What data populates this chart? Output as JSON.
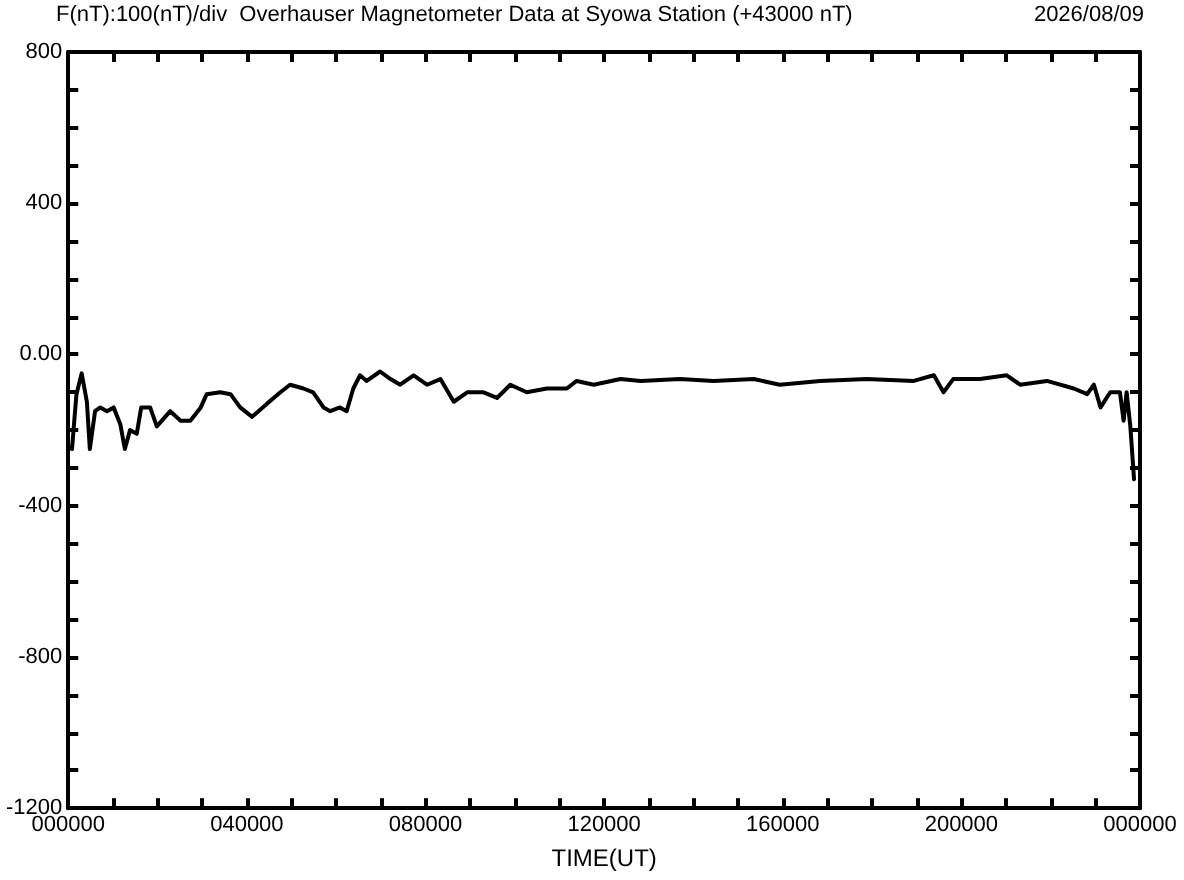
{
  "chart_data": {
    "type": "line",
    "title": "F(nT):100(nT)/div  Overhauser Magnetometer Data at Syowa Station (+43000 nT)",
    "subtitle": "2026/08/09",
    "xlabel": "TIME(UT)",
    "x": [
      "2026-08-09T00:00",
      "2026-08-09T00:05",
      "2026-08-09T00:11",
      "2026-08-09T00:18",
      "2026-08-09T00:25",
      "2026-08-09T00:29",
      "2026-08-09T00:36",
      "2026-08-09T00:43",
      "2026-08-09T00:52",
      "2026-08-09T01:01",
      "2026-08-09T01:10",
      "2026-08-09T01:16",
      "2026-08-09T01:23",
      "2026-08-09T01:32",
      "2026-08-09T01:38",
      "2026-08-09T01:50",
      "2026-08-09T01:59",
      "2026-08-09T02:17",
      "2026-08-09T02:31",
      "2026-08-09T02:44",
      "2026-08-09T02:58",
      "2026-08-09T03:06",
      "2026-08-09T03:24",
      "2026-08-09T03:38",
      "2026-08-09T03:51",
      "2026-08-09T04:07",
      "2026-08-09T04:27",
      "2026-08-09T04:45",
      "2026-08-09T04:58",
      "2026-08-09T05:16",
      "2026-08-09T05:29",
      "2026-08-09T05:43",
      "2026-08-09T05:52",
      "2026-08-09T06:05",
      "2026-08-09T06:14",
      "2026-08-09T06:23",
      "2026-08-09T06:32",
      "2026-08-09T06:41",
      "2026-08-09T06:59",
      "2026-08-09T07:13",
      "2026-08-09T07:26",
      "2026-08-09T07:44",
      "2026-08-09T08:02",
      "2026-08-09T08:20",
      "2026-08-09T08:38",
      "2026-08-09T08:56",
      "2026-08-09T09:18",
      "2026-08-09T09:36",
      "2026-08-09T09:54",
      "2026-08-09T10:16",
      "2026-08-09T10:43",
      "2026-08-09T11:10",
      "2026-08-09T11:23",
      "2026-08-09T11:46",
      "2026-08-09T12:22",
      "2026-08-09T12:49",
      "2026-08-09T13:42",
      "2026-08-09T14:27",
      "2026-08-09T15:21",
      "2026-08-09T15:56",
      "2026-08-09T16:50",
      "2026-08-09T17:53",
      "2026-08-09T18:56",
      "2026-08-09T19:23",
      "2026-08-09T19:36",
      "2026-08-09T19:49",
      "2026-08-09T20:25",
      "2026-08-09T21:01",
      "2026-08-09T21:19",
      "2026-08-09T21:55",
      "2026-08-09T22:31",
      "2026-08-09T22:49",
      "2026-08-09T22:58",
      "2026-08-09T23:07",
      "2026-08-09T23:20",
      "2026-08-09T23:33",
      "2026-08-09T23:38",
      "2026-08-09T23:42",
      "2026-08-09T23:47",
      "2026-08-09T23:52"
    ],
    "series": [
      {
        "color": "#000000",
        "values": [
          -245,
          -250,
          -105,
          -50,
          -125,
          -250,
          -150,
          -140,
          -150,
          -140,
          -185,
          -250,
          -200,
          -210,
          -140,
          -140,
          -190,
          -150,
          -175,
          -175,
          -140,
          -105,
          -100,
          -105,
          -140,
          -165,
          -130,
          -100,
          -80,
          -90,
          -100,
          -140,
          -150,
          -140,
          -150,
          -90,
          -55,
          -70,
          -45,
          -65,
          -80,
          -55,
          -80,
          -65,
          -125,
          -100,
          -100,
          -115,
          -80,
          -100,
          -90,
          -90,
          -70,
          -80,
          -65,
          -70,
          -65,
          -70,
          -65,
          -80,
          -70,
          -65,
          -70,
          -55,
          -100,
          -65,
          -65,
          -55,
          -80,
          -70,
          -90,
          -105,
          -80,
          -140,
          -100,
          -100,
          -175,
          -100,
          -190,
          -330
        ]
      }
    ],
    "xlim": [
      "2026-08-09T00:00",
      "2026-08-10T00:00"
    ],
    "xticks": [
      {
        "value": "2026-08-09T00:00",
        "label": "000000"
      },
      {
        "value": "2026-08-09T01:00",
        "label": null
      },
      {
        "value": "2026-08-09T02:00",
        "label": null
      },
      {
        "value": "2026-08-09T03:00",
        "label": null
      },
      {
        "value": "2026-08-09T04:00",
        "label": "040000"
      },
      {
        "value": "2026-08-09T05:00",
        "label": null
      },
      {
        "value": "2026-08-09T06:00",
        "label": null
      },
      {
        "value": "2026-08-09T07:00",
        "label": null
      },
      {
        "value": "2026-08-09T08:00",
        "label": "080000"
      },
      {
        "value": "2026-08-09T09:00",
        "label": null
      },
      {
        "value": "2026-08-09T10:00",
        "label": null
      },
      {
        "value": "2026-08-09T11:00",
        "label": null
      },
      {
        "value": "2026-08-09T12:00",
        "label": "120000"
      },
      {
        "value": "2026-08-09T13:00",
        "label": null
      },
      {
        "value": "2026-08-09T14:00",
        "label": null
      },
      {
        "value": "2026-08-09T15:00",
        "label": null
      },
      {
        "value": "2026-08-09T16:00",
        "label": "160000"
      },
      {
        "value": "2026-08-09T17:00",
        "label": null
      },
      {
        "value": "2026-08-09T18:00",
        "label": null
      },
      {
        "value": "2026-08-09T19:00",
        "label": null
      },
      {
        "value": "2026-08-09T20:00",
        "label": "200000"
      },
      {
        "value": "2026-08-09T21:00",
        "label": null
      },
      {
        "value": "2026-08-09T22:00",
        "label": null
      },
      {
        "value": "2026-08-09T23:00",
        "label": null
      },
      {
        "value": "2026-08-10T00:00",
        "label": "000000"
      }
    ],
    "ylim": [
      -1200,
      800
    ],
    "yticks": [
      {
        "value": -1200,
        "label": "-1200"
      },
      {
        "value": -1100,
        "label": null
      },
      {
        "value": -1000,
        "label": null
      },
      {
        "value": -900,
        "label": null
      },
      {
        "value": -800,
        "label": "-800"
      },
      {
        "value": -700,
        "label": null
      },
      {
        "value": -600,
        "label": null
      },
      {
        "value": -500,
        "label": null
      },
      {
        "value": -400,
        "label": "-400"
      },
      {
        "value": -300,
        "label": null
      },
      {
        "value": -200,
        "label": null
      },
      {
        "value": -100,
        "label": null
      },
      {
        "value": 0,
        "label": "0.00"
      },
      {
        "value": 100,
        "label": null
      },
      {
        "value": 200,
        "label": null
      },
      {
        "value": 300,
        "label": null
      },
      {
        "value": 400,
        "label": "400"
      },
      {
        "value": 500,
        "label": null
      },
      {
        "value": 600,
        "label": null
      },
      {
        "value": 700,
        "label": null
      },
      {
        "value": 800,
        "label": "800"
      }
    ],
    "grid": false,
    "marker": "none",
    "line_style": "solid"
  }
}
